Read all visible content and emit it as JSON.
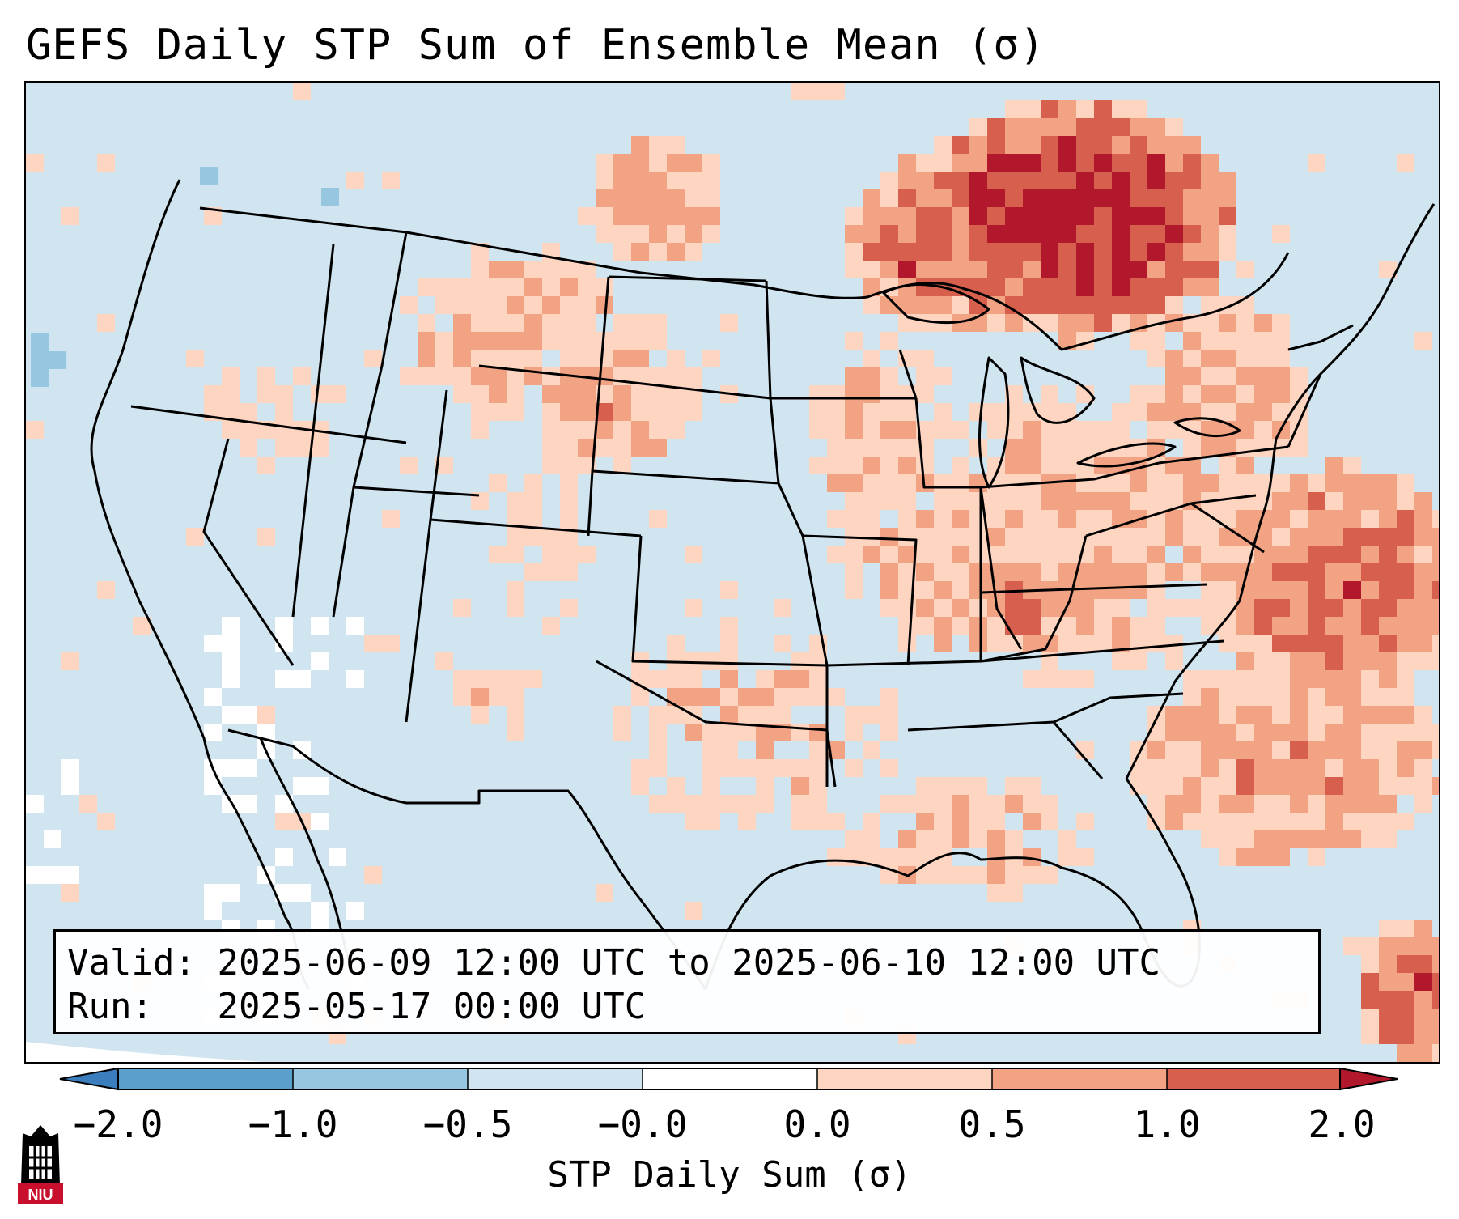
{
  "title": "GEFS Daily STP Sum of Ensemble Mean (σ)",
  "info": {
    "valid_label": "Valid:",
    "valid_value": "2025-06-09 12:00 UTC to 2025-06-10 12:00 UTC",
    "run_label": "Run:",
    "run_value": "2025-05-17 00:00 UTC"
  },
  "colorbar": {
    "label": "STP Daily Sum (σ)",
    "ticks": [
      "−2.0",
      "−1.0",
      "−0.5",
      "−0.0",
      "0.0",
      "0.5",
      "1.0",
      "2.0"
    ],
    "colors": [
      "#3a7ebd",
      "#5b9fcc",
      "#97c7e0",
      "#d1e5f0",
      "#ffffff",
      "#fdd5c0",
      "#f2a383",
      "#d6604d",
      "#b2182b"
    ]
  },
  "logo": {
    "text": "NIU"
  },
  "colors": {
    "background_bin": "#d1e5f0",
    "neutral_bin": "#ffffff",
    "weak_positive": "#fdd5c0",
    "moderate_positive": "#f2a383",
    "strong_positive": "#d6604d",
    "very_strong_positive": "#b2182b",
    "weak_negative": "#97c7e0",
    "moderate_negative": "#5b9fcc"
  }
}
